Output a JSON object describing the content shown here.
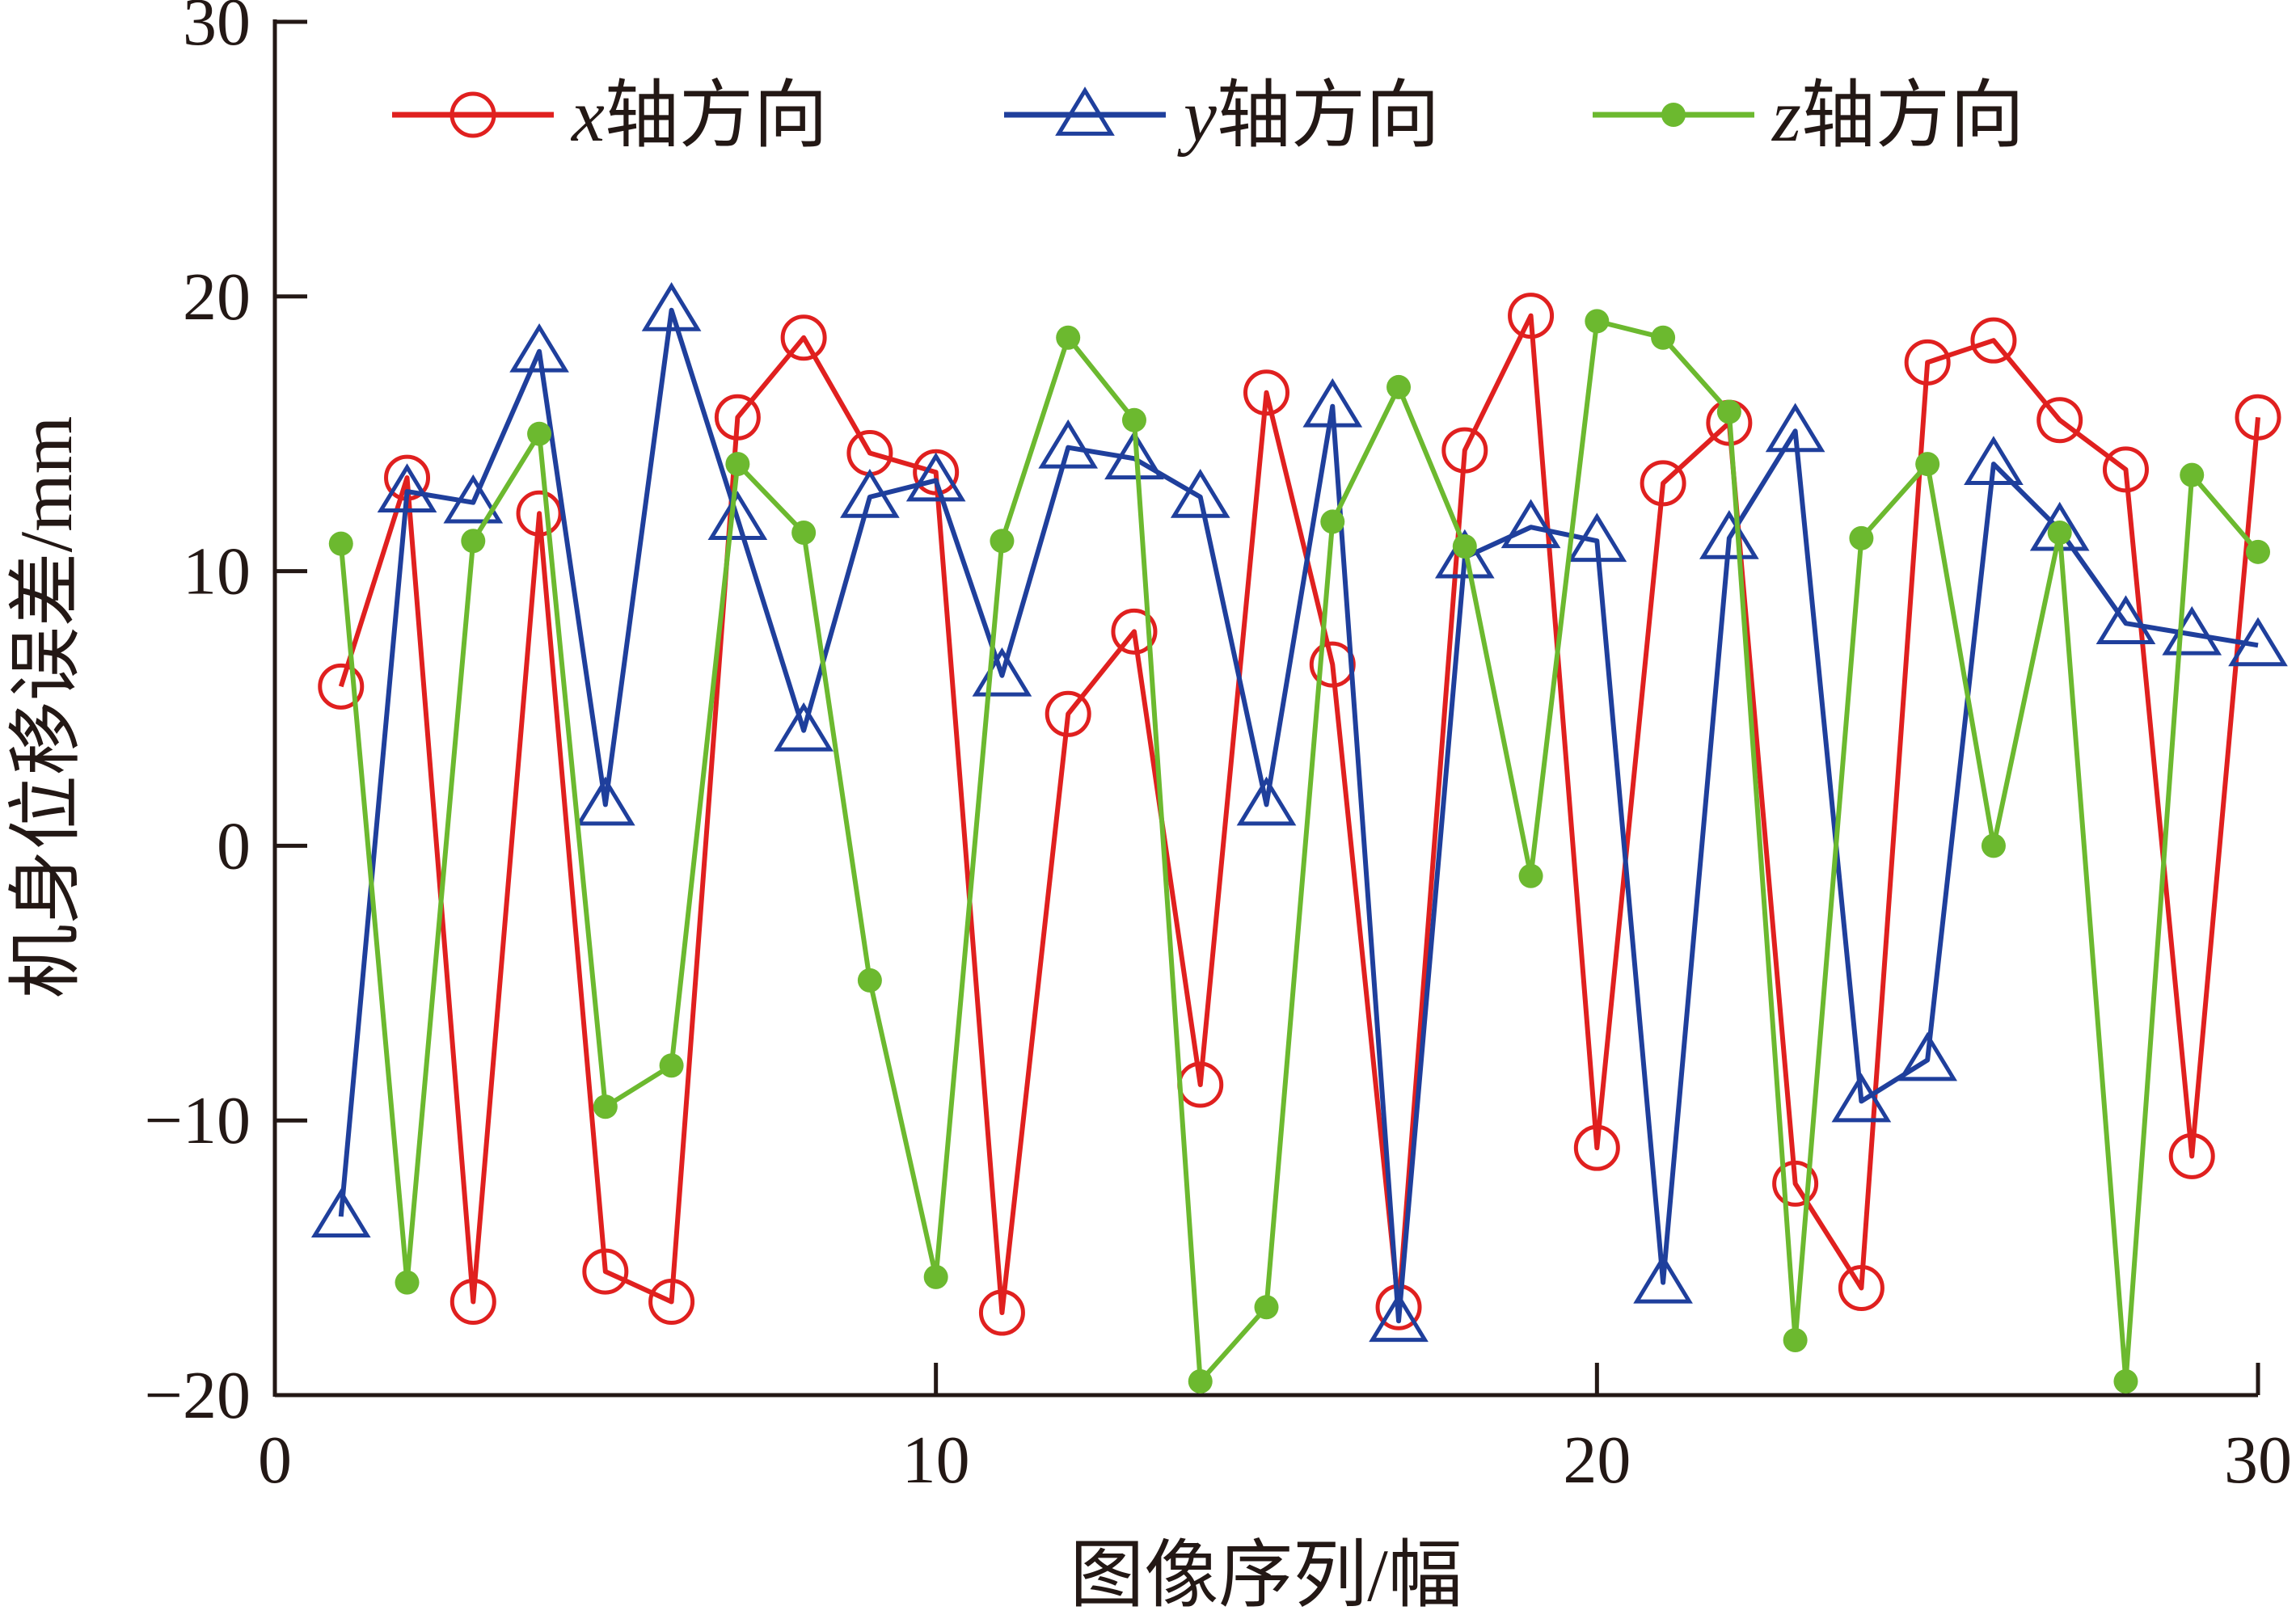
{
  "chart_data": {
    "type": "line",
    "xlabel": "图像序列/幅",
    "ylabel": "机身位移误差/mm",
    "xlim": [
      0,
      30
    ],
    "ylim": [
      -20,
      30
    ],
    "xticks": [
      0,
      10,
      20,
      30
    ],
    "yticks": [
      -20,
      -10,
      0,
      10,
      20,
      30
    ],
    "xtick_labels": [
      "0",
      "10",
      "20",
      "30"
    ],
    "ytick_labels": [
      "−20",
      "−10",
      "0",
      "10",
      "20",
      "30"
    ],
    "grid": false,
    "legend_position": "top",
    "x": [
      1,
      2,
      3,
      4,
      5,
      6,
      7,
      8,
      9,
      10,
      11,
      12,
      13,
      14,
      15,
      16,
      17,
      18,
      19,
      20,
      21,
      22,
      23,
      24,
      25,
      26,
      27,
      28,
      29,
      30
    ],
    "series": [
      {
        "name": "x轴方向",
        "name_var": "x",
        "name_rest": "轴方向",
        "color": "#e0201f",
        "marker": "circle",
        "values": [
          5.8,
          13.4,
          -16.6,
          12.1,
          -15.5,
          -16.6,
          15.6,
          18.5,
          14.3,
          13.6,
          -17.0,
          4.8,
          7.8,
          -8.7,
          16.5,
          6.6,
          -16.8,
          14.4,
          19.3,
          -11.0,
          13.2,
          15.4,
          -12.3,
          -16.1,
          17.6,
          18.4,
          15.5,
          13.7,
          -11.3,
          15.6
        ]
      },
      {
        "name": "y轴方向",
        "name_var": "y",
        "name_rest": "轴方向",
        "color": "#1f3f9c",
        "marker": "triangle",
        "values": [
          -13.5,
          12.9,
          12.5,
          18.0,
          1.5,
          19.5,
          11.9,
          4.2,
          12.7,
          13.3,
          6.2,
          14.5,
          14.1,
          12.7,
          1.5,
          16.0,
          -17.3,
          10.5,
          11.6,
          11.1,
          -15.9,
          11.2,
          15.1,
          -9.3,
          -7.8,
          13.9,
          11.5,
          8.1,
          7.7,
          7.3
        ]
      },
      {
        "name": "z轴方向",
        "name_var": "z",
        "name_rest": "轴方向",
        "color": "#6cb92f",
        "marker": "dot",
        "values": [
          11.0,
          -15.9,
          11.1,
          15.0,
          -9.5,
          -8.0,
          13.9,
          11.4,
          -4.9,
          -15.7,
          11.1,
          18.5,
          15.5,
          -19.5,
          -16.8,
          11.8,
          16.7,
          10.9,
          -1.1,
          19.1,
          18.5,
          15.8,
          -18.0,
          11.2,
          13.9,
          0.0,
          11.4,
          -19.5,
          13.5,
          10.7
        ]
      }
    ]
  }
}
